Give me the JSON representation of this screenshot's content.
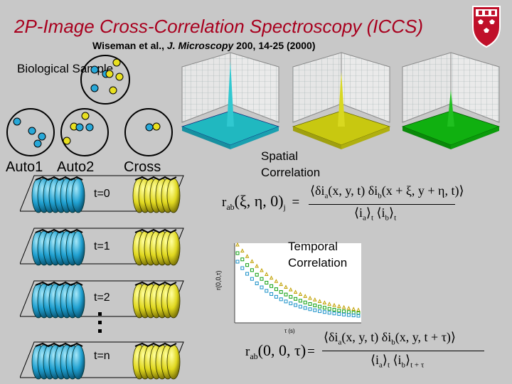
{
  "slide": {
    "title": "2P-Image Cross-Correlation Spectroscopy (ICCS)",
    "citation_authors": "Wiseman et al., ",
    "citation_journal": "J. Microscopy",
    "citation_details": " 200, 14-25 (2000)",
    "logo": "mcgill-crest"
  },
  "labels": {
    "sample": "Biological Sample",
    "auto1": "Auto1",
    "auto2": "Auto2",
    "cross": "Cross",
    "spatial": "Spatial Correlation",
    "temporal": "Temporal Correlation"
  },
  "time_labels": [
    "t=0",
    "t=1",
    "t=2",
    "t=n"
  ],
  "colors": {
    "title": "#a8001e",
    "cyan_particle": "#28a8d8",
    "yellow_particle": "#e8e020",
    "green_surface": "#10b010",
    "cyan_surface": "#20b8c0",
    "yellow_surface": "#c8c810",
    "background": "#c8c8c8"
  },
  "formulas": {
    "spatial": {
      "lhs": "r",
      "lhs_sub": "ab",
      "lhs_args": "(ξ, η, 0)",
      "lhs_bracket_sub": "j",
      "eq": "=",
      "numerator": "⟨δi",
      "num_a": "a",
      "num_mid": "(x, y, t) δi",
      "num_b": "b",
      "num_end": "(x + ξ, y + η, t)⟩",
      "den": "⟨i",
      "den_a": "a",
      "den_mid": "⟩",
      "den_t1": "t",
      "den_mid2": " ⟨i",
      "den_b": "b",
      "den_end": "⟩",
      "den_t2": "t"
    },
    "temporal": {
      "lhs": "r",
      "lhs_sub": "ab",
      "lhs_args": "(0, 0, τ)",
      "eq": "=",
      "numerator": "⟨δi",
      "num_a": "a",
      "num_mid": "(x, y, t) δi",
      "num_b": "b",
      "num_end": "(x, y, t + τ)⟩",
      "den": "⟨i",
      "den_a": "a",
      "den_mid": "⟩",
      "den_t1": "t",
      "den_mid2": " ⟨i",
      "den_b": "b",
      "den_end": "⟩",
      "den_t2": "t + τ"
    }
  },
  "plot_labels": {
    "y_label": "r(0,0,τ)",
    "x_label": "τ (s)"
  }
}
